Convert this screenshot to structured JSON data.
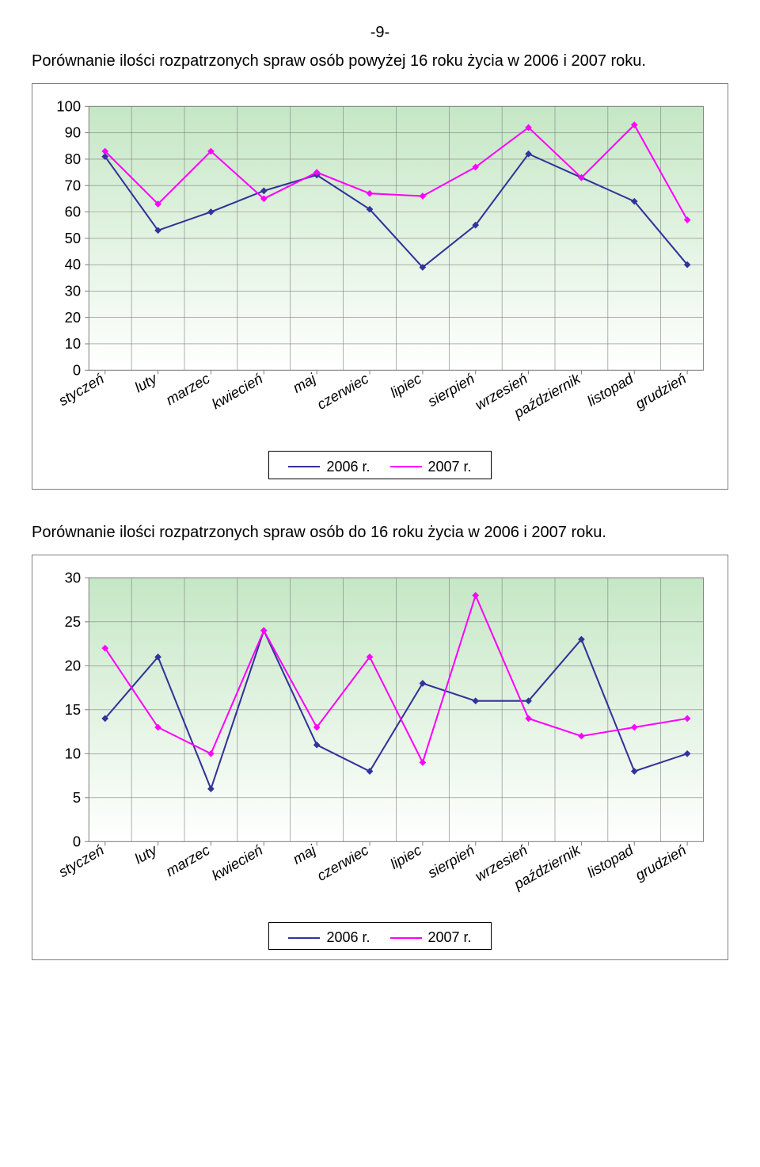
{
  "page_number_text": "-9-",
  "caption1": "Porównanie ilości rozpatrzonych spraw osób powyżej 16 roku życia w 2006 i 2007 roku.",
  "caption2": "Porównanie ilości rozpatrzonych spraw osób do 16 roku życia w 2006 i 2007 roku.",
  "chart1": {
    "type": "line",
    "categories": [
      "styczeń",
      "luty",
      "marzec",
      "kwiecień",
      "maj",
      "czerwiec",
      "lipiec",
      "sierpień",
      "wrzesień",
      "październik",
      "listopad",
      "grudzień"
    ],
    "series": [
      {
        "name": "2006 r.",
        "color": "#333399",
        "values": [
          81,
          53,
          60,
          68,
          74,
          61,
          39,
          55,
          82,
          73,
          64,
          40
        ]
      },
      {
        "name": "2007 r.",
        "color": "#ff00ff",
        "values": [
          83,
          63,
          83,
          65,
          75,
          67,
          66,
          77,
          92,
          73,
          93,
          57
        ]
      }
    ],
    "ylim": [
      0,
      100
    ],
    "ytick_step": 10,
    "plot_bg_top": "#c5e7c5",
    "plot_bg_bottom": "#ffffff",
    "grid_color": "#808080",
    "axis_color": "#808080",
    "marker_radius": 3,
    "line_width": 2,
    "tick_fontsize": 18,
    "label_fontsize": 18,
    "legend_label1": "2006 r.",
    "legend_label2": "2007 r."
  },
  "chart2": {
    "type": "line",
    "categories": [
      "styczeń",
      "luty",
      "marzec",
      "kwiecień",
      "maj",
      "czerwiec",
      "lipiec",
      "sierpień",
      "wrzesień",
      "październik",
      "listopad",
      "grudzień"
    ],
    "series": [
      {
        "name": "2006 r.",
        "color": "#333399",
        "values": [
          14,
          21,
          6,
          24,
          11,
          8,
          18,
          16,
          16,
          23,
          8,
          10
        ]
      },
      {
        "name": "2007 r.",
        "color": "#ff00ff",
        "values": [
          22,
          13,
          10,
          24,
          13,
          21,
          9,
          28,
          14,
          12,
          13,
          14
        ]
      }
    ],
    "ylim": [
      0,
      30
    ],
    "ytick_step": 5,
    "plot_bg_top": "#c5e7c5",
    "plot_bg_bottom": "#ffffff",
    "grid_color": "#808080",
    "axis_color": "#808080",
    "marker_radius": 3,
    "line_width": 2,
    "tick_fontsize": 18,
    "label_fontsize": 18,
    "legend_label1": "2006 r.",
    "legend_label2": "2007 r."
  }
}
